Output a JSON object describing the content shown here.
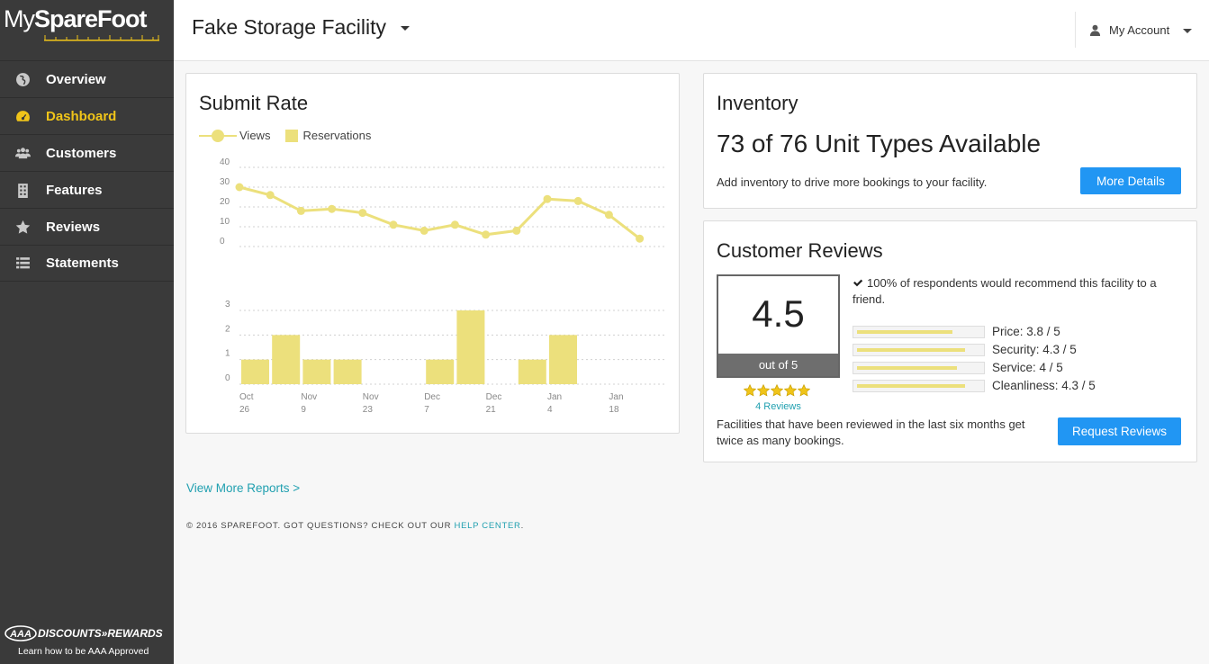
{
  "logo": {
    "my": "My",
    "brand": "SpareFoot"
  },
  "sidebar": {
    "items": [
      {
        "label": "Overview",
        "icon": "globe-icon"
      },
      {
        "label": "Dashboard",
        "icon": "dashboard-icon",
        "active": true
      },
      {
        "label": "Customers",
        "icon": "users-icon"
      },
      {
        "label": "Features",
        "icon": "building-icon"
      },
      {
        "label": "Reviews",
        "icon": "star-icon"
      },
      {
        "label": "Statements",
        "icon": "list-icon"
      }
    ],
    "promo": {
      "title": "DISCOUNTS»REWARDS",
      "subtitle": "Learn how to be AAA Approved"
    }
  },
  "header": {
    "facility": "Fake Storage Facility",
    "account": "My Account"
  },
  "submit_rate": {
    "title": "Submit Rate",
    "legend": {
      "views": "Views",
      "reservations": "Reservations"
    }
  },
  "chart_data": {
    "type": "line+bar",
    "title": "Submit Rate",
    "series": [
      {
        "name": "Views",
        "type": "line",
        "values": [
          30,
          26,
          18,
          19,
          17,
          11,
          8,
          11,
          6,
          8,
          24,
          23,
          16,
          4
        ]
      },
      {
        "name": "Reservations",
        "type": "bar",
        "values": [
          1,
          2,
          1,
          1,
          0,
          0,
          1,
          3,
          0,
          1,
          2,
          0,
          0,
          0
        ]
      }
    ],
    "line_yticks": [
      "40",
      "30",
      "20",
      "10",
      "0"
    ],
    "line_ylim": [
      0,
      40
    ],
    "bar_yticks": [
      "3",
      "2",
      "1",
      "0"
    ],
    "bar_ylim": [
      0,
      3
    ],
    "x_tick_labels": [
      [
        "Oct",
        "26"
      ],
      [
        "Nov",
        "9"
      ],
      [
        "Nov",
        "23"
      ],
      [
        "Dec",
        "7"
      ],
      [
        "Dec",
        "21"
      ],
      [
        "Jan",
        "4"
      ],
      [
        "Jan",
        "18"
      ]
    ],
    "grid": true,
    "legend": "top-left"
  },
  "inventory": {
    "title": "Inventory",
    "headline": "73 of 76 Unit Types Available",
    "description": "Add inventory to drive more bookings to your facility.",
    "button": "More Details"
  },
  "reviews": {
    "title": "Customer Reviews",
    "score": "4.5",
    "score_caption": "out of 5",
    "stars": 5,
    "count": "4 Reviews",
    "recommend": "100% of respondents would recommend this facility to a friend.",
    "ratings": [
      {
        "label": "Price:  3.8 / 5",
        "value": 3.8
      },
      {
        "label": "Security:  4.3 / 5",
        "value": 4.3
      },
      {
        "label": "Service:  4 / 5",
        "value": 4.0
      },
      {
        "label": "Cleanliness:  4.3 / 5",
        "value": 4.3
      }
    ],
    "description": "Facilities that have been reviewed in the last six months get twice as many bookings.",
    "button": "Request Reviews"
  },
  "more_reports": "View More Reports >",
  "footer": {
    "text": "© 2016 SPAREFOOT. GOT QUESTIONS? CHECK OUT OUR ",
    "link": "HELP CENTER",
    "end": "."
  },
  "colors": {
    "sidebar": "#3a3a3a",
    "active": "#f0c419",
    "chart": "#ece07c",
    "button": "#2196f3",
    "link": "#21a0b0"
  }
}
